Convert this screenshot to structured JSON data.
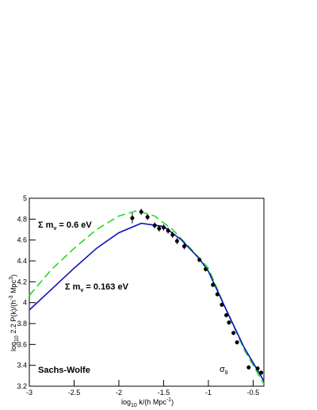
{
  "chart_data": {
    "type": "line",
    "xlabel": [
      "log",
      "10",
      " k/(h Mpc",
      "-1",
      ")"
    ],
    "ylabel": [
      "log",
      "10",
      " 2.2 P(k)/(h",
      "-3",
      " Mpc",
      "3",
      ")"
    ],
    "xlim": [
      -3,
      -0.38
    ],
    "ylim": [
      3.2,
      5
    ],
    "xticks": [
      -3,
      -2.5,
      -2,
      -1.5,
      -1,
      -0.5
    ],
    "yticks": [
      3.2,
      3.4,
      3.6,
      3.8,
      4,
      4.2,
      4.4,
      4.6,
      4.8,
      5
    ],
    "curves": [
      {
        "color": "#22dd22",
        "dashed": true,
        "x": [
          -3,
          -2.75,
          -2.5,
          -2.25,
          -2,
          -1.8,
          -1.6,
          -1.4,
          -1.2,
          -1,
          -0.8,
          -0.6,
          -0.38
        ],
        "values": [
          4.07,
          4.32,
          4.52,
          4.7,
          4.83,
          4.88,
          4.83,
          4.7,
          4.52,
          4.33,
          3.93,
          3.55,
          3.22
        ]
      },
      {
        "color": "#1010c0",
        "dashed": false,
        "x": [
          -3,
          -2.75,
          -2.5,
          -2.25,
          -2,
          -1.75,
          -1.5,
          -1.3,
          -1.1,
          -1,
          -0.8,
          -0.6,
          -0.38
        ],
        "values": [
          3.93,
          4.13,
          4.33,
          4.52,
          4.67,
          4.76,
          4.73,
          4.6,
          4.42,
          4.3,
          3.93,
          3.57,
          3.25
        ]
      }
    ],
    "points": {
      "color": "#000000",
      "x": [
        -1.85,
        -1.75,
        -1.68,
        -1.6,
        -1.55,
        -1.5,
        -1.45,
        -1.4,
        -1.35,
        -1.27,
        -1.1,
        -1.03,
        -0.95,
        -0.9,
        -0.85,
        -0.8,
        -0.77,
        -0.72,
        -0.68,
        -0.55,
        -0.45,
        -0.41
      ],
      "values": [
        4.81,
        4.87,
        4.82,
        4.74,
        4.71,
        4.72,
        4.69,
        4.65,
        4.59,
        4.54,
        4.41,
        4.32,
        4.17,
        4.08,
        3.98,
        3.88,
        3.81,
        3.71,
        3.62,
        3.38,
        3.37,
        3.33
      ],
      "errors": [
        0.05,
        0.03,
        0.03,
        0.03,
        0.03,
        0.03,
        0.03,
        0.03,
        0.03,
        0.03,
        0.02,
        0.02,
        0.02,
        0.02,
        0.02,
        0.02,
        0.02,
        0.02,
        0.02,
        0.02,
        0.02,
        0.02
      ]
    },
    "annotations": [
      [
        "Σ m",
        "ν",
        " = 0.6 eV"
      ],
      [
        "Σ m",
        "ν",
        " = 0.163 eV"
      ],
      [
        "Sachs-Wolfe"
      ],
      [
        "σ",
        "8"
      ]
    ]
  }
}
